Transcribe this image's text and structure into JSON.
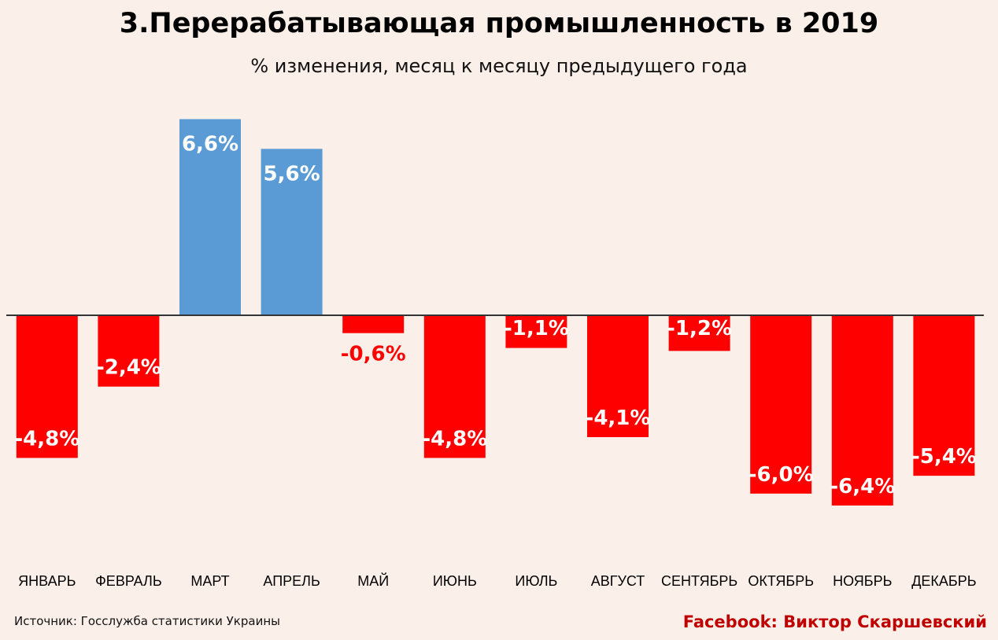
{
  "chart_data": {
    "type": "bar",
    "title": "3.Перерабатывающая промышленность в 2019",
    "subtitle": "% изменения, месяц к месяцу предыдущего года",
    "categories": [
      "ЯНВАРЬ",
      "ФЕВРАЛЬ",
      "МАРТ",
      "АПРЕЛЬ",
      "МАЙ",
      "ИЮНЬ",
      "ИЮЛЬ",
      "АВГУСТ",
      "СЕНТЯБРЬ",
      "ОКТЯБРЬ",
      "НОЯБРЬ",
      "ДЕКАБРЬ"
    ],
    "values": [
      -4.8,
      -2.4,
      6.6,
      5.6,
      -0.6,
      -4.8,
      -1.1,
      -4.1,
      -1.2,
      -6.0,
      -6.4,
      -5.4
    ],
    "labels": [
      "-4,8%",
      "-2,4%",
      "6,6%",
      "5,6%",
      "-0,6%",
      "-4,8%",
      "-1,1%",
      "-4,1%",
      "-1,2%",
      "-6,0%",
      "-6,4%",
      "-5,4%"
    ],
    "xlabel": "",
    "ylabel": "",
    "ylim": [
      -8,
      7
    ],
    "grid": false,
    "legend": "none",
    "colors": {
      "positive": "#5b9bd5",
      "negative": "#ff0000",
      "axis": "#333333"
    }
  },
  "footer": {
    "source": "Источник: Госслужба статистики Украины",
    "credit": "Facebook: Виктор Скаршевский",
    "credit_color": "#c00000"
  }
}
